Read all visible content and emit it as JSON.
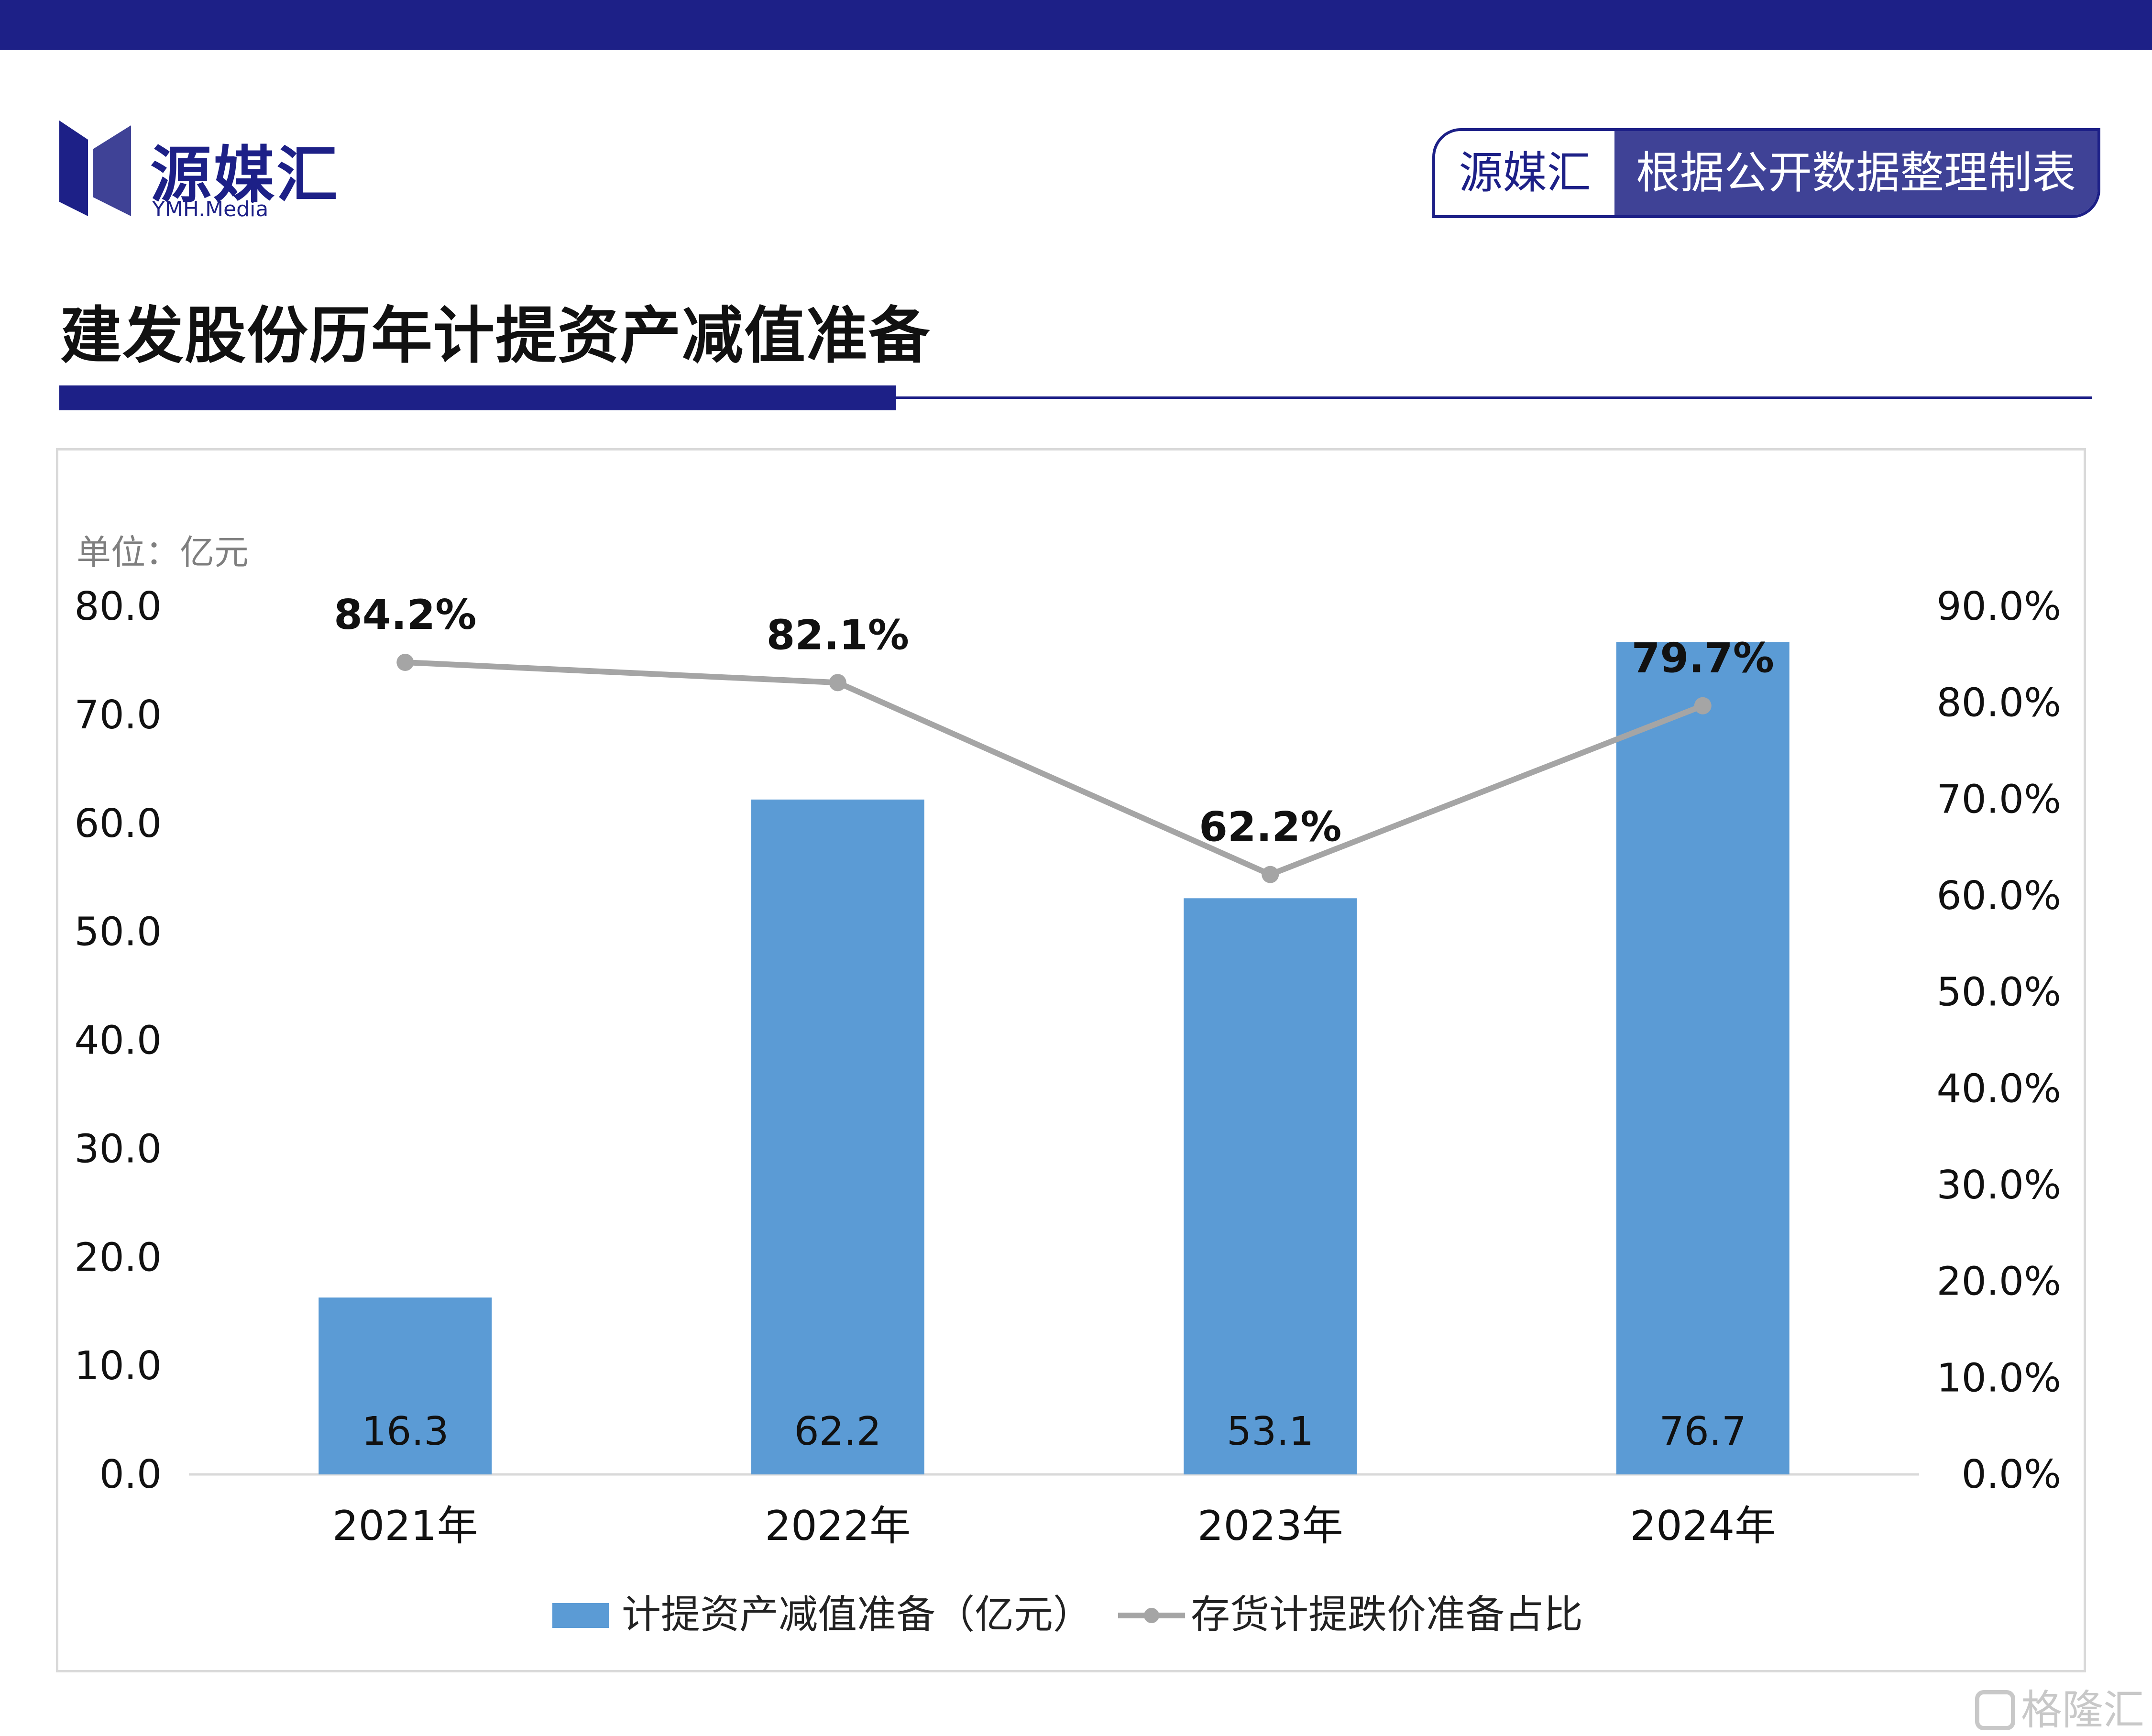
{
  "brand": {
    "name_cn": "源媒汇",
    "name_en": "YMH.Media"
  },
  "source_badge": {
    "brand": "源媒汇",
    "text": "根据公开数据整理制表"
  },
  "page_title": "建发股份历年计提资产减值准备",
  "watermark": "格隆汇",
  "colors": {
    "brand_navy": "#1d2087",
    "bar_blue": "#5b9bd5",
    "line_gray": "#a5a5a5"
  },
  "chart_data": {
    "type": "bar",
    "unit_label": "单位：亿元",
    "categories": [
      "2021年",
      "2022年",
      "2023年",
      "2024年"
    ],
    "series": [
      {
        "name": "计提资产减值准备（亿元）",
        "type": "bar",
        "axis": "left",
        "values": [
          16.3,
          62.2,
          53.1,
          76.7
        ],
        "labels": [
          "16.3",
          "62.2",
          "53.1",
          "76.7"
        ]
      },
      {
        "name": "存货计提跌价准备占比",
        "type": "line",
        "axis": "right",
        "values": [
          84.2,
          82.1,
          62.2,
          79.7
        ],
        "labels": [
          "84.2%",
          "82.1%",
          "62.2%",
          "79.7%"
        ]
      }
    ],
    "y_left": {
      "range": [
        0,
        80
      ],
      "ticks": [
        "0.0",
        "10.0",
        "20.0",
        "30.0",
        "40.0",
        "50.0",
        "60.0",
        "70.0",
        "80.0"
      ]
    },
    "y_right": {
      "range": [
        0,
        90
      ],
      "ticks": [
        "0.0%",
        "10.0%",
        "20.0%",
        "30.0%",
        "40.0%",
        "50.0%",
        "60.0%",
        "70.0%",
        "80.0%",
        "90.0%"
      ]
    },
    "grid": false,
    "legend_position": "bottom"
  }
}
